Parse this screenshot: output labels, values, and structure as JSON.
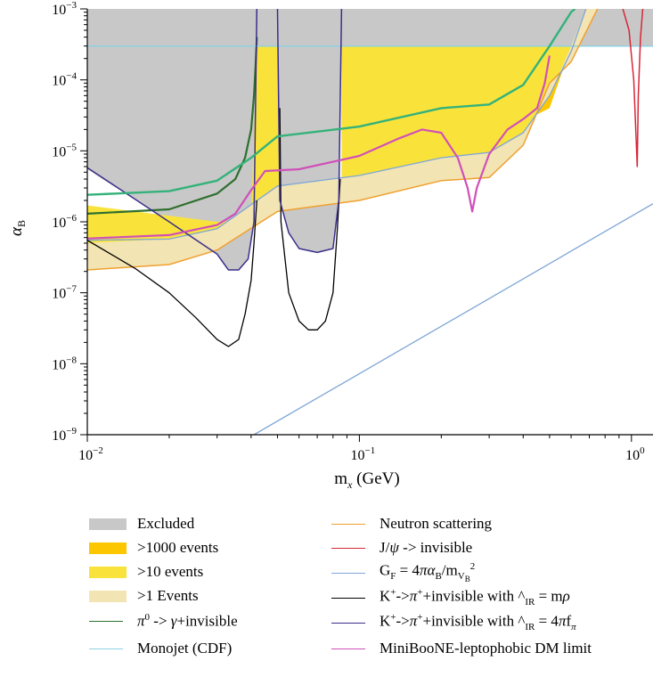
{
  "chart_data": {
    "type": "line",
    "x_scale": "log",
    "y_scale": "log",
    "xlim": [
      0.01,
      1.2
    ],
    "ylim": [
      1e-09,
      0.001
    ],
    "xlabel": "m_x (GeV)",
    "ylabel": "α_B",
    "x_ticks": [
      {
        "value": 0.01,
        "base": "10",
        "exp": "−2"
      },
      {
        "value": 0.1,
        "base": "10",
        "exp": "−1"
      },
      {
        "value": 1,
        "base": "10",
        "exp": "0"
      }
    ],
    "y_ticks": [
      {
        "value": 1e-09,
        "base": "10",
        "exp": "−9"
      },
      {
        "value": 1e-08,
        "base": "10",
        "exp": "−8"
      },
      {
        "value": 1e-07,
        "base": "10",
        "exp": "−7"
      },
      {
        "value": 1e-06,
        "base": "10",
        "exp": "−6"
      },
      {
        "value": 1e-05,
        "base": "10",
        "exp": "−5"
      },
      {
        "value": 0.0001,
        "base": "10",
        "exp": "−4"
      },
      {
        "value": 0.001,
        "base": "10",
        "exp": "−3"
      }
    ],
    "regions": [
      {
        "name": "Excluded",
        "color": "#c8c8c8",
        "points": [
          [
            0.01,
            0.001
          ],
          [
            0.01,
            5.5e-06
          ],
          [
            0.02,
            1e-06
          ],
          [
            0.03,
            3.5e-07
          ],
          [
            0.033,
            2.1e-07
          ],
          [
            0.036,
            2.1e-07
          ],
          [
            0.039,
            3e-07
          ],
          [
            0.041,
            1e-06
          ],
          [
            0.042,
            0.0003
          ],
          [
            0.05,
            0.0003
          ],
          [
            0.051,
            2e-06
          ],
          [
            0.055,
            7e-07
          ],
          [
            0.06,
            4.2e-07
          ],
          [
            0.07,
            3.7e-07
          ],
          [
            0.08,
            4.2e-07
          ],
          [
            0.084,
            2e-06
          ],
          [
            0.086,
            0.0003
          ],
          [
            1.2,
            0.0003
          ],
          [
            1.2,
            0.001
          ]
        ]
      },
      {
        "name": ">1000 events",
        "color": "#fcc700",
        "points": [
          [
            0.042,
            0.0003
          ],
          [
            0.05,
            0.0003
          ],
          [
            0.05,
            1.5e-05
          ],
          [
            0.0425,
            1e-05
          ]
        ]
      },
      {
        "name": ">1000 events",
        "color": "#fcc700",
        "points": [
          [
            0.086,
            0.0003
          ],
          [
            0.6,
            0.0003
          ],
          [
            0.5,
            4e-05
          ],
          [
            0.4,
            2.6e-05
          ],
          [
            0.3,
            1.9e-05
          ],
          [
            0.2,
            1.7e-05
          ],
          [
            0.1,
            1.4e-05
          ],
          [
            0.086,
            1.35e-05
          ]
        ]
      },
      {
        "name": ">10 events",
        "color": "#f9e33b",
        "points": [
          [
            0.01,
            1.7e-06
          ],
          [
            0.03,
            1e-06
          ],
          [
            0.04,
            1.1e-06
          ],
          [
            0.042,
            0.0003
          ],
          [
            0.05,
            0.0003
          ],
          [
            0.051,
            2e-06
          ],
          [
            0.086,
            2e-06
          ],
          [
            0.086,
            0.0003
          ],
          [
            0.6,
            0.0003
          ],
          [
            0.5,
            6e-05
          ],
          [
            0.4,
            1.8e-05
          ],
          [
            0.3,
            9.5e-06
          ],
          [
            0.2,
            8e-06
          ],
          [
            0.1,
            4.5e-06
          ],
          [
            0.05,
            3.2e-06
          ],
          [
            0.03,
            8e-07
          ],
          [
            0.02,
            5.7e-07
          ],
          [
            0.01,
            5e-07
          ]
        ]
      },
      {
        "name": ">1 Events",
        "color": "#f2e4b3",
        "points": [
          [
            0.01,
            5e-07
          ],
          [
            0.02,
            5.7e-07
          ],
          [
            0.03,
            8e-07
          ],
          [
            0.05,
            3.2e-06
          ],
          [
            0.1,
            4.5e-06
          ],
          [
            0.2,
            8e-06
          ],
          [
            0.3,
            9.5e-06
          ],
          [
            0.4,
            1.8e-05
          ],
          [
            0.5,
            6e-05
          ],
          [
            0.6,
            0.0003
          ],
          [
            0.68,
            0.001
          ],
          [
            0.75,
            0.001
          ],
          [
            0.6,
            0.00018
          ],
          [
            0.5,
            9e-05
          ],
          [
            0.4,
            1.2e-05
          ],
          [
            0.3,
            4.2e-06
          ],
          [
            0.2,
            3.8e-06
          ],
          [
            0.1,
            2e-06
          ],
          [
            0.05,
            1.4e-06
          ],
          [
            0.03,
            4e-07
          ],
          [
            0.02,
            2.5e-07
          ],
          [
            0.01,
            2.1e-07
          ]
        ]
      }
    ],
    "series": [
      {
        "name": "π⁰ -> γ+invisible",
        "color": "#2e6f2e",
        "width": 2.2,
        "points": [
          [
            0.01,
            1.3e-06
          ],
          [
            0.02,
            1.5e-06
          ],
          [
            0.03,
            2.5e-06
          ],
          [
            0.035,
            4e-06
          ],
          [
            0.038,
            8e-06
          ],
          [
            0.04,
            2e-05
          ],
          [
            0.041,
            6e-05
          ],
          [
            0.0415,
            0.00015
          ],
          [
            0.042,
            0.0004
          ]
        ]
      },
      {
        "name": "Monojet (CDF)",
        "color": "#8fd1e3",
        "width": 1.5,
        "points": [
          [
            0.01,
            0.0003
          ],
          [
            1.2,
            0.0003
          ]
        ]
      },
      {
        "name": "Neutron scattering",
        "color": "#f0a030",
        "width": 1.5,
        "points": [
          [
            0.01,
            2.1e-07
          ],
          [
            0.02,
            2.5e-07
          ],
          [
            0.03,
            4e-07
          ],
          [
            0.05,
            1.4e-06
          ],
          [
            0.1,
            2e-06
          ],
          [
            0.2,
            3.8e-06
          ],
          [
            0.3,
            4.2e-06
          ],
          [
            0.4,
            1.2e-05
          ],
          [
            0.5,
            9e-05
          ],
          [
            0.6,
            0.00018
          ],
          [
            0.75,
            0.001
          ]
        ]
      },
      {
        "name": "J/ψ -> invisible",
        "color": "#d62839",
        "width": 1.5,
        "points": [
          [
            0.93,
            0.001
          ],
          [
            0.98,
            0.0005
          ],
          [
            1.02,
            0.0001
          ],
          [
            1.05,
            6e-06
          ],
          [
            1.06,
            6e-05
          ],
          [
            1.08,
            0.0004
          ],
          [
            1.1,
            0.001
          ]
        ]
      },
      {
        "name": "G_F = 4πα_B/m_VB²",
        "color": "#7fa6d6",
        "width": 1.3,
        "points": [
          [
            0.01,
            5.5e-07
          ],
          [
            0.02,
            5.7e-07
          ],
          [
            0.03,
            8e-07
          ],
          [
            0.05,
            3.2e-06
          ],
          [
            0.1,
            4.5e-06
          ],
          [
            0.2,
            8e-06
          ],
          [
            0.3,
            9.5e-06
          ],
          [
            0.4,
            1.8e-05
          ],
          [
            0.5,
            6e-05
          ],
          [
            0.6,
            0.00025
          ],
          [
            0.68,
            0.001
          ]
        ]
      },
      {
        "name": "G_F = 4πα_B/m_VB²",
        "color": "#7fa6d6",
        "width": 1.3,
        "points": [
          [
            0.041,
            1e-09
          ],
          [
            1.2,
            1.8e-06
          ]
        ]
      },
      {
        "name": "K⁺->π⁺+invisible with ^_IR = mρ",
        "color": "#000000",
        "width": 1.3,
        "points": [
          [
            0.01,
            5.5e-07
          ],
          [
            0.015,
            2.2e-07
          ],
          [
            0.02,
            1e-07
          ],
          [
            0.025,
            4.5e-08
          ],
          [
            0.03,
            2.2e-08
          ],
          [
            0.033,
            1.75e-08
          ],
          [
            0.036,
            2.2e-08
          ],
          [
            0.038,
            5e-08
          ],
          [
            0.04,
            1.5e-07
          ],
          [
            0.041,
            5e-07
          ],
          [
            0.042,
            2e-06
          ]
        ]
      },
      {
        "name": "K⁺->π⁺+invisible with ^_IR = mρ",
        "color": "#000000",
        "width": 1.3,
        "points": [
          [
            0.051,
            4e-05
          ],
          [
            0.0515,
            1e-06
          ],
          [
            0.055,
            1e-07
          ],
          [
            0.06,
            4e-08
          ],
          [
            0.065,
            3e-08
          ],
          [
            0.07,
            3e-08
          ],
          [
            0.075,
            4e-08
          ],
          [
            0.08,
            1e-07
          ],
          [
            0.083,
            8e-07
          ],
          [
            0.085,
            4e-06
          ]
        ]
      },
      {
        "name": "K⁺->π⁺+invisible with ^_IR = 4πf_π",
        "color": "#3a2f8c",
        "width": 1.5,
        "points": [
          [
            0.01,
            5.8e-06
          ],
          [
            0.02,
            1e-06
          ],
          [
            0.03,
            3.5e-07
          ],
          [
            0.033,
            2.1e-07
          ],
          [
            0.036,
            2.1e-07
          ],
          [
            0.039,
            3e-07
          ],
          [
            0.041,
            1e-06
          ],
          [
            0.042,
            0.001
          ]
        ]
      },
      {
        "name": "K⁺->π⁺+invisible with ^_IR = 4πf_π",
        "color": "#3a2f8c",
        "width": 1.5,
        "points": [
          [
            0.05,
            0.001
          ],
          [
            0.051,
            2e-06
          ],
          [
            0.055,
            7e-07
          ],
          [
            0.06,
            4.2e-07
          ],
          [
            0.07,
            3.7e-07
          ],
          [
            0.08,
            4.2e-07
          ],
          [
            0.084,
            2e-06
          ],
          [
            0.086,
            0.001
          ]
        ]
      },
      {
        "name": "",
        "color": "#34b27a",
        "width": 2.4,
        "points": [
          [
            0.01,
            2.4e-06
          ],
          [
            0.02,
            2.7e-06
          ],
          [
            0.03,
            3.8e-06
          ],
          [
            0.04,
            8e-06
          ],
          [
            0.05,
            1.6e-05
          ],
          [
            0.1,
            2.2e-05
          ],
          [
            0.2,
            4e-05
          ],
          [
            0.3,
            4.5e-05
          ],
          [
            0.4,
            8.5e-05
          ],
          [
            0.5,
            0.0003
          ],
          [
            0.6,
            0.0009
          ],
          [
            0.62,
            0.001
          ]
        ]
      },
      {
        "name": "MiniBooNE-leptophobic DM limit",
        "color": "#d050b8",
        "width": 2.2,
        "points": [
          [
            0.01,
            5.8e-07
          ],
          [
            0.02,
            6.5e-07
          ],
          [
            0.03,
            9e-07
          ],
          [
            0.035,
            1.3e-06
          ],
          [
            0.04,
            2.8e-06
          ],
          [
            0.045,
            5.2e-06
          ],
          [
            0.06,
            5.5e-06
          ],
          [
            0.1,
            8.5e-06
          ],
          [
            0.14,
            1.5e-05
          ],
          [
            0.17,
            2e-05
          ],
          [
            0.2,
            1.8e-05
          ],
          [
            0.23,
            8e-06
          ],
          [
            0.25,
            3e-06
          ],
          [
            0.26,
            1.4e-06
          ],
          [
            0.27,
            3e-06
          ],
          [
            0.3,
            9e-06
          ],
          [
            0.35,
            2e-05
          ],
          [
            0.4,
            2.8e-05
          ],
          [
            0.45,
            4e-05
          ],
          [
            0.48,
            9e-05
          ],
          [
            0.5,
            0.00022
          ]
        ]
      }
    ]
  },
  "legend": {
    "left": [
      {
        "label": "Excluded",
        "color": "#c8c8c8",
        "kind": "box"
      },
      {
        "label": ">1000 events",
        "color": "#fcc700",
        "kind": "box"
      },
      {
        "label": ">10 events",
        "color": "#f9e33b",
        "kind": "box"
      },
      {
        "label": ">1 Events",
        "color": "#f2e4b3",
        "kind": "box"
      },
      {
        "label": "π⁰ -> γ+invisible",
        "color": "#2e6f2e",
        "kind": "line"
      },
      {
        "label": "Monojet (CDF)",
        "color": "#8fd1e3",
        "kind": "line"
      }
    ],
    "right": [
      {
        "label": "Neutron scattering",
        "color": "#f0a030",
        "kind": "line"
      },
      {
        "label": "J/ψ -> invisible",
        "color": "#d62839",
        "kind": "line"
      },
      {
        "label": "G_F = 4πα_B/m_VB²",
        "color": "#7fa6d6",
        "kind": "line"
      },
      {
        "label": "K⁺->π⁺+invisible with ^_IR = mρ",
        "color": "#000000",
        "kind": "line"
      },
      {
        "label": "K⁺->π⁺+invisible with ^_IR = 4πf_π",
        "color": "#3a2f8c",
        "kind": "line"
      },
      {
        "label": "MiniBooNE-leptophobic DM limit",
        "color": "#d050b8",
        "kind": "line"
      }
    ]
  }
}
